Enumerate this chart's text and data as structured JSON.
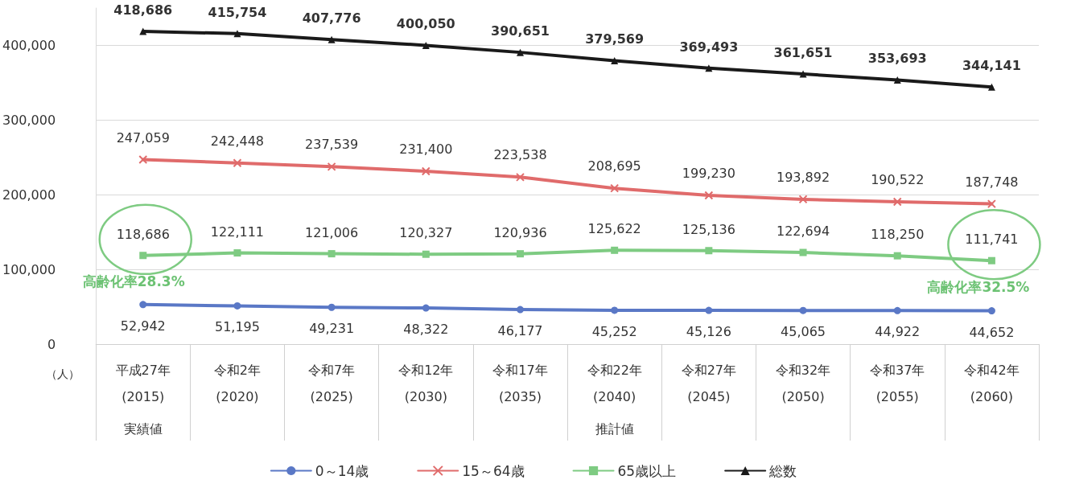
{
  "chart_data": {
    "type": "line",
    "ylabel": "（人）",
    "categories": [
      "平成27年\n(2015)",
      "令和2年\n(2020)",
      "令和7年\n(2025)",
      "令和12年\n(2030)",
      "令和17年\n(2035)",
      "令和22年\n(2040)",
      "令和27年\n(2045)",
      "令和32年\n(2050)",
      "令和37年\n(2055)",
      "令和42年\n(2060)"
    ],
    "series": [
      {
        "name": "0～14歳",
        "color": "#5a78c6",
        "marker": "circle",
        "values": [
          52942,
          51195,
          49231,
          48322,
          46177,
          45252,
          45126,
          45065,
          44922,
          44652
        ],
        "value_labels": [
          "52,942",
          "51,195",
          "49,231",
          "48,322",
          "46,177",
          "45,252",
          "45,126",
          "45,065",
          "44,922",
          "44,652"
        ]
      },
      {
        "name": "15～64歳",
        "color": "#e06b6b",
        "marker": "cross",
        "values": [
          247059,
          242448,
          237539,
          231400,
          223538,
          208695,
          199230,
          193892,
          190522,
          187748
        ],
        "value_labels": [
          "247,059",
          "242,448",
          "237,539",
          "231,400",
          "223,538",
          "208,695",
          "199,230",
          "193,892",
          "190,522",
          "187,748"
        ]
      },
      {
        "name": "65歳以上",
        "color": "#7ecb82",
        "marker": "square",
        "values": [
          118686,
          122111,
          121006,
          120327,
          120936,
          125622,
          125136,
          122694,
          118250,
          111741
        ],
        "value_labels": [
          "118,686",
          "122,111",
          "121,006",
          "120,327",
          "120,936",
          "125,622",
          "125,136",
          "122,694",
          "118,250",
          "111,741"
        ]
      },
      {
        "name": "総数",
        "color": "#1a1a1a",
        "marker": "triangle",
        "values": [
          418686,
          415754,
          407776,
          400050,
          390651,
          379569,
          369493,
          361651,
          353693,
          344141
        ],
        "value_labels": [
          "418,686",
          "415,754",
          "407,776",
          "400,050",
          "390,651",
          "379,569",
          "369,493",
          "361,651",
          "353,693",
          "344,141"
        ]
      }
    ],
    "ylim": [
      0,
      450000
    ],
    "yticks": [
      0,
      {
        "value": 100000,
        "label": "100,000"
      },
      {
        "value": 200000,
        "label": "200,000"
      },
      {
        "value": 300000,
        "label": "300,000"
      },
      {
        "value": 400000,
        "label": "400,000"
      }
    ],
    "grid": "y",
    "legend": "bottom",
    "line_style": "solid",
    "annotations": [
      "高齢化率28.3%",
      "高齢化率32.5%",
      "実績値",
      "推計値"
    ]
  }
}
